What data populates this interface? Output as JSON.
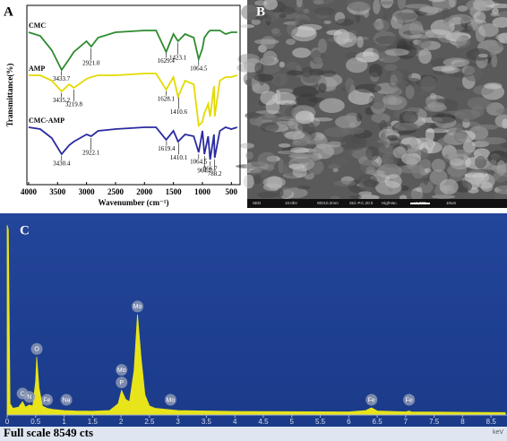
{
  "chart_data": [
    {
      "type": "line",
      "panel_label": "A",
      "x_label": "Wavenumber (cm⁻¹)",
      "y_label": "Transmittance(%)",
      "x": [
        4000,
        3800,
        3600,
        3430,
        3300,
        3220,
        3000,
        2920,
        2800,
        2500,
        2000,
        1800,
        1625,
        1500,
        1420,
        1300,
        1150,
        1064,
        1000,
        965,
        900,
        867,
        800,
        788,
        700,
        600,
        500,
        400
      ],
      "xlim": [
        4030,
        350
      ],
      "xticks": [
        4000,
        3500,
        3000,
        2500,
        2000,
        1500,
        1000,
        500
      ],
      "ylim": [
        0,
        100
      ],
      "series": [
        {
          "name": "CMC",
          "color": "#2e8b2e",
          "values": [
            85,
            83,
            75,
            64,
            70,
            74,
            80,
            77,
            82,
            85,
            86,
            86,
            74,
            84,
            80,
            84,
            82,
            70,
            76,
            82,
            85,
            86,
            86,
            86,
            86,
            84,
            85,
            85
          ],
          "annotations": [
            {
              "text": "3433.7",
              "x": 3433.7
            },
            {
              "text": "2921.0",
              "x": 2921.0
            },
            {
              "text": "1629.4",
              "x": 1629.4
            },
            {
              "text": "1423.1",
              "x": 1423.1
            },
            {
              "text": "1064.5",
              "x": 1064.5
            }
          ]
        },
        {
          "name": "AMP",
          "color": "#e3da00",
          "values": [
            61,
            61,
            58,
            52,
            56,
            54,
            59,
            60,
            61,
            61,
            62,
            62,
            53,
            60,
            49,
            58,
            56,
            33,
            35,
            40,
            45,
            38,
            55,
            38,
            58,
            60,
            60,
            61
          ],
          "annotations": [
            {
              "text": "3435.2",
              "x": 3435.2
            },
            {
              "text": "3219.8",
              "x": 3219.8
            },
            {
              "text": "1628.1",
              "x": 1628.1
            },
            {
              "text": "1410.6",
              "x": 1410.6
            }
          ]
        },
        {
          "name": "CMC-AMP",
          "color": "#2b2ba0",
          "values": [
            32,
            31,
            26,
            17,
            22,
            24,
            28,
            27,
            30,
            31,
            32,
            32,
            25,
            30,
            24,
            28,
            27,
            18,
            30,
            17,
            27,
            14,
            28,
            15,
            30,
            32,
            31,
            32
          ],
          "annotations": [
            {
              "text": "3430.4",
              "x": 3430.4
            },
            {
              "text": "2922.1",
              "x": 2922.1
            },
            {
              "text": "1619.4",
              "x": 1619.4
            },
            {
              "text": "1410.1",
              "x": 1410.1
            },
            {
              "text": "1064.5",
              "x": 1064.5
            },
            {
              "text": "964.7",
              "x": 964.7
            },
            {
              "text": "866.7",
              "x": 866.7
            },
            {
              "text": "788.2",
              "x": 788.2
            }
          ]
        }
      ]
    },
    {
      "type": "area",
      "panel_label": "C",
      "x_label": "keV",
      "footer": "Full scale 8549 cts",
      "color": "#e8e41a",
      "x": [
        0,
        0.02,
        0.05,
        0.1,
        0.2,
        0.27,
        0.32,
        0.39,
        0.45,
        0.5,
        0.52,
        0.56,
        0.62,
        0.7,
        0.8,
        1.0,
        1.2,
        1.5,
        1.8,
        1.95,
        2.01,
        2.08,
        2.15,
        2.23,
        2.29,
        2.35,
        2.42,
        2.5,
        2.6,
        2.8,
        3.0,
        3.5,
        4.0,
        5.0,
        6.0,
        6.3,
        6.4,
        6.5,
        7.0,
        7.06,
        7.1,
        8.0,
        8.75
      ],
      "values": [
        8500,
        8300,
        500,
        300,
        350,
        600,
        350,
        450,
        400,
        1500,
        2600,
        1200,
        400,
        300,
        250,
        200,
        180,
        170,
        200,
        500,
        1100,
        700,
        600,
        2000,
        4500,
        2600,
        900,
        400,
        300,
        250,
        200,
        180,
        160,
        150,
        140,
        200,
        320,
        180,
        140,
        180,
        140,
        120,
        110
      ],
      "xlim": [
        0,
        8.78
      ],
      "ylim": [
        0,
        8549
      ],
      "xticks": [
        0,
        0.5,
        1,
        1.5,
        2,
        2.5,
        3,
        3.5,
        4,
        4.5,
        5,
        5.5,
        6,
        6.5,
        7,
        7.5,
        8,
        8.5
      ],
      "annotations": [
        {
          "text": "C",
          "x": 0.27
        },
        {
          "text": "N",
          "x": 0.39
        },
        {
          "text": "O",
          "x": 0.52
        },
        {
          "text": "Fe",
          "x": 0.7
        },
        {
          "text": "Na",
          "x": 1.04
        },
        {
          "text": "P",
          "x": 2.01
        },
        {
          "text": "Mo",
          "x": 2.01
        },
        {
          "text": "Mo",
          "x": 2.29
        },
        {
          "text": "Mo",
          "x": 2.87
        },
        {
          "text": "Fe",
          "x": 6.4
        },
        {
          "text": "Fe",
          "x": 7.06
        }
      ]
    }
  ],
  "panel_b": {
    "label": "B",
    "info": [
      "SED",
      "10.0kV",
      "WD10.2mm",
      "Std.-P.C.20.0",
      "HighVac.",
      "x1,000",
      "10um"
    ]
  }
}
